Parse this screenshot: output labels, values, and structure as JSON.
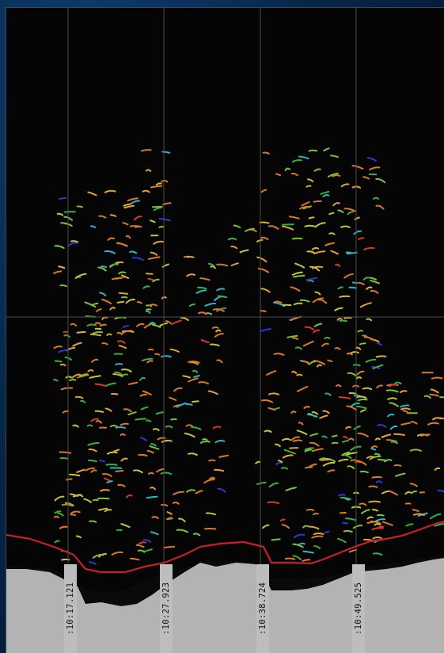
{
  "echogram": {
    "time_labels": [
      ":10:17.121",
      ":10:27.923",
      ":10:38.724",
      ":10:49.525"
    ],
    "colors": {
      "background": "#050505",
      "gridlines": "#4a4a4a",
      "bottom_line": "#c8202a",
      "seabed_fill": "#b3b3b3",
      "seabed_dark": "#0a0a0a"
    },
    "target_colors": [
      "#d97a2a",
      "#e3a23a",
      "#c7c23a",
      "#7ec23a",
      "#3ab040",
      "#2fb5c7",
      "#d63a2a",
      "#2a3ad6"
    ]
  }
}
